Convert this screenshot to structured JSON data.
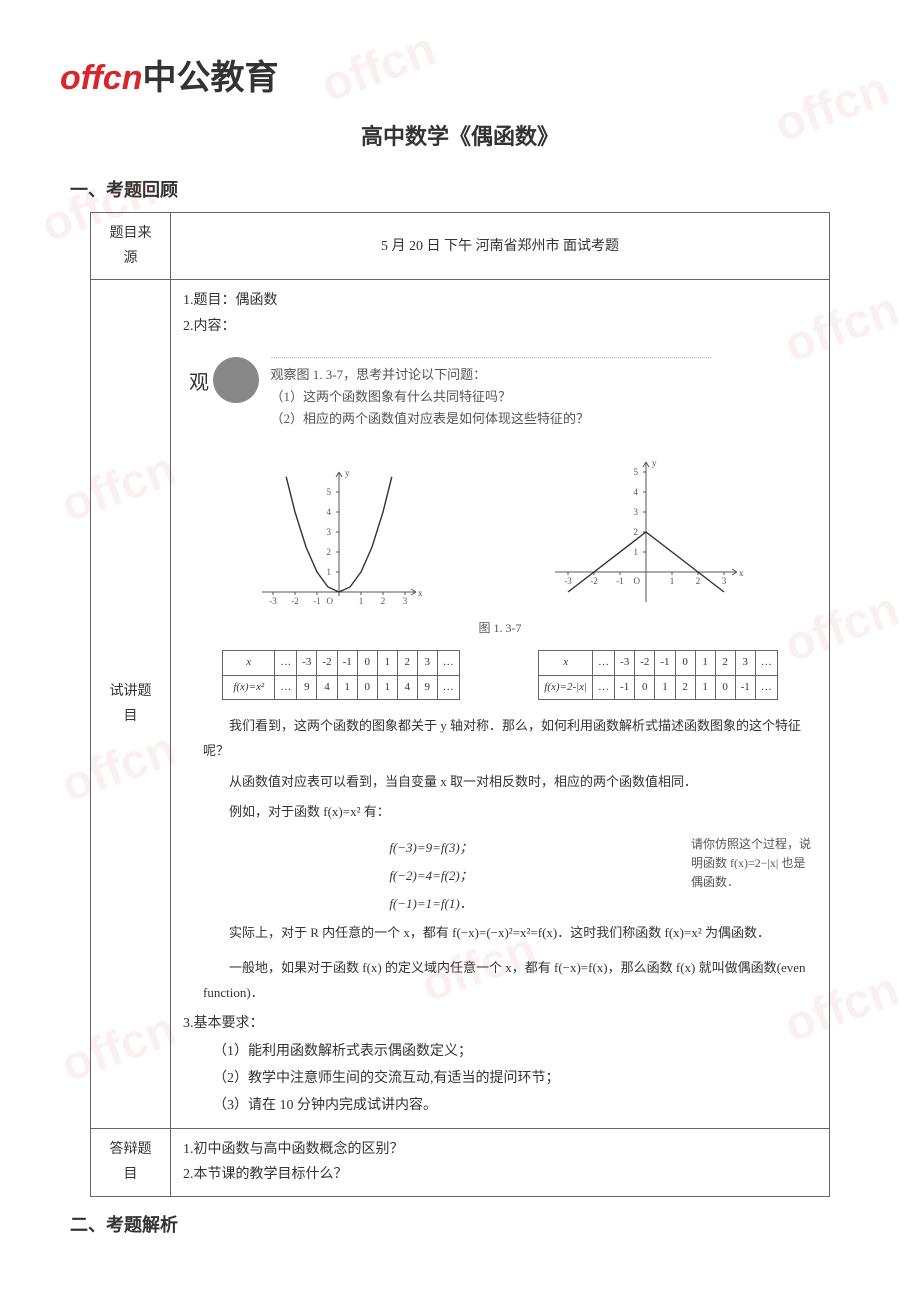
{
  "logo": {
    "brand_en": "offcn",
    "brand_cn": "中公教育"
  },
  "watermark_text": "offcn",
  "page_title": "高中数学《偶函数》",
  "sections": {
    "review": "一、考题回顾",
    "analysis": "二、考题解析"
  },
  "table": {
    "rows": {
      "source_label": "题目来源",
      "source_value": "5 月 20 日 下午 河南省郑州市 面试考题",
      "lecture_label": "试讲题目",
      "defense_label": "答辩题目"
    }
  },
  "lecture": {
    "line1": "1.题目：偶函数",
    "line2": "2.内容：",
    "observe": {
      "intro": "观察图 1. 3-7，思考并讨论以下问题：",
      "q1": "（1）这两个函数图象有什么共同特征吗？",
      "q2": "（2）相应的两个函数值对应表是如何体现这些特征的？"
    },
    "figure_caption": "图 1. 3-7",
    "value_tables": {
      "table1": {
        "fn": "f(x)=x²",
        "xs": [
          "x",
          "…",
          "-3",
          "-2",
          "-1",
          "0",
          "1",
          "2",
          "3",
          "…"
        ],
        "ys": [
          "f(x)=x²",
          "…",
          "9",
          "4",
          "1",
          "0",
          "1",
          "4",
          "9",
          "…"
        ]
      },
      "table2": {
        "fn": "f(x)=2-|x|",
        "xs": [
          "x",
          "…",
          "-3",
          "-2",
          "-1",
          "0",
          "1",
          "2",
          "3",
          "…"
        ],
        "ys": [
          "f(x)=2-|x|",
          "…",
          "-1",
          "0",
          "1",
          "2",
          "1",
          "0",
          "-1",
          "…"
        ]
      }
    },
    "para1": "我们看到，这两个函数的图象都关于 y 轴对称．那么，如何利用函数解析式描述函数图象的这个特征呢？",
    "para2": "从函数值对应表可以看到，当自变量 x 取一对相反数时，相应的两个函数值相同．",
    "para3": "例如，对于函数 f(x)=x² 有：",
    "eq1": "f(−3)=9=f(3)；",
    "eq2": "f(−2)=4=f(2)；",
    "eq3": "f(−1)=1=f(1)．",
    "side_note": "请你仿照这个过程，说明函数 f(x)=2−|x| 也是偶函数．",
    "para4a": "实际上，对于 R 内任意的一个 x，都有 f(−x)=(−x)²=x²=f(x)．这时我们称函数 f(x)=x² 为偶函数．",
    "para5": "一般地，如果对于函数 f(x) 的定义域内任意一个 x，都有 f(−x)=f(x)，那么函数 f(x) 就叫做偶函数(even function)．",
    "req_heading": "3.基本要求：",
    "req1": "（1）能利用函数解析式表示偶函数定义；",
    "req2": "（2）教学中注意师生间的交流互动,有适当的提问环节；",
    "req3": "（3）请在 10 分钟内完成试讲内容。"
  },
  "defense": {
    "q1": "1.初中函数与高中函数概念的区别？",
    "q2": "2.本节课的教学目标什么？"
  },
  "charts": {
    "parabola": {
      "type": "line",
      "xlim": [
        -3.5,
        3.5
      ],
      "ylim": [
        -0.5,
        6
      ],
      "yticks": [
        1,
        2,
        3,
        4,
        5
      ],
      "xticks": [
        -3,
        -2,
        -1,
        1,
        2,
        3
      ],
      "axis_color": "#555555",
      "curve_color": "#333333",
      "curve_width": 1.4,
      "background_color": "#ffffff",
      "points_x": [
        -2.4,
        -2,
        -1.5,
        -1,
        -0.5,
        0,
        0.5,
        1,
        1.5,
        2,
        2.4
      ]
    },
    "vee": {
      "type": "line",
      "xlim": [
        -3.5,
        3.5
      ],
      "ylim": [
        -1.5,
        5.5
      ],
      "yticks": [
        1,
        2,
        3,
        4,
        5
      ],
      "xticks": [
        -3,
        -2,
        -1,
        1,
        2,
        3
      ],
      "axis_color": "#555555",
      "curve_color": "#333333",
      "curve_width": 1.4,
      "background_color": "#ffffff",
      "segments": [
        [
          -3,
          -1
        ],
        [
          0,
          2
        ],
        [
          3,
          -1
        ]
      ]
    }
  },
  "colors": {
    "brand_red": "#d9262a",
    "text": "#333333",
    "figure_text": "#555555",
    "border": "#666666"
  },
  "fonts": {
    "title_size_pt": 16,
    "section_size_pt": 14,
    "body_size_pt": 10
  }
}
